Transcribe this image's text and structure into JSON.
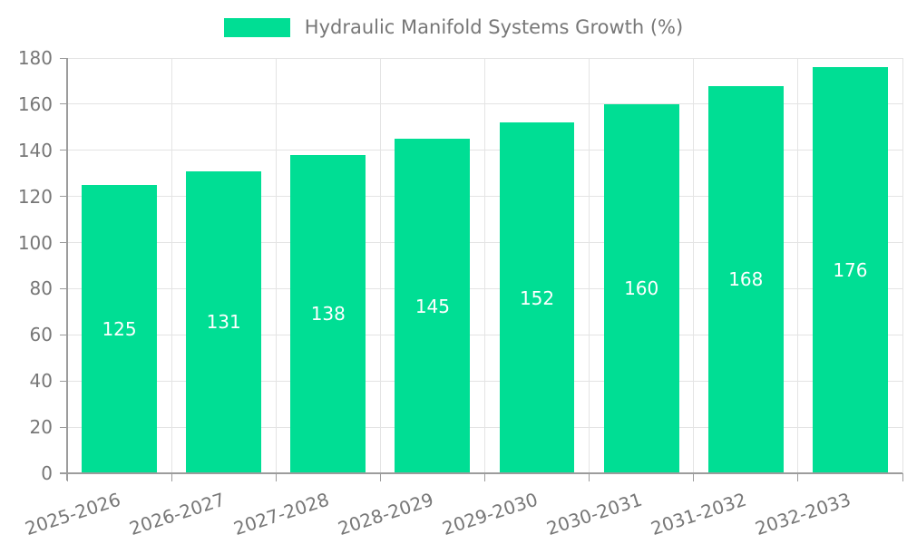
{
  "chart_data": {
    "type": "bar",
    "title": "Hydraulic Manifold Systems Growth (%)",
    "categories": [
      "2025-2026",
      "2026-2027",
      "2027-2028",
      "2028-2029",
      "2029-2030",
      "2030-2031",
      "2031-2032",
      "2032-2033"
    ],
    "values": [
      125,
      131,
      138,
      145,
      152,
      160,
      168,
      176
    ],
    "xlabel": "",
    "ylabel": "",
    "ylim": [
      0,
      180
    ],
    "yticks": [
      0,
      20,
      40,
      60,
      80,
      100,
      120,
      140,
      160,
      180
    ],
    "grid": true,
    "legend_position": "top",
    "bar_labels_inside": true,
    "colors": {
      "bar": "#00de94",
      "bar_label": "#ffffff",
      "text": "#777777",
      "grid": "#e4e4e4",
      "axis": "#9c9c9c",
      "background": "#ffffff"
    }
  }
}
